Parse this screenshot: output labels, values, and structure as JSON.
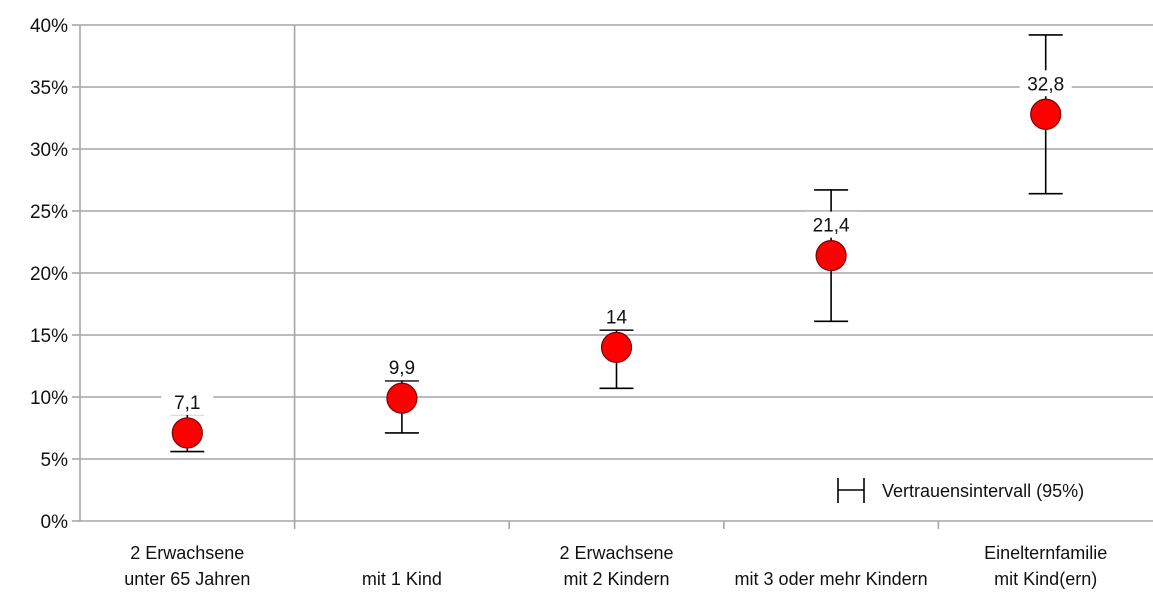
{
  "chart_data": {
    "type": "scatter",
    "ylim": [
      0,
      40
    ],
    "y_tick_labels": [
      "0%",
      "5%",
      "10%",
      "15%",
      "20%",
      "25%",
      "30%",
      "35%",
      "40%"
    ],
    "y_tick_values": [
      0,
      5,
      10,
      15,
      20,
      25,
      30,
      35,
      40
    ],
    "categories": [
      [
        "2 Erwachsene",
        "unter 65 Jahren"
      ],
      [
        "mit 1 Kind"
      ],
      [
        "2 Erwachsene",
        "mit 2 Kindern"
      ],
      [
        "mit 3 oder mehr Kindern"
      ],
      [
        "Einelternfamilie",
        "mit Kind(ern)"
      ]
    ],
    "points": [
      {
        "value": 7.1,
        "label": "7,1",
        "ci_low": 5.6,
        "ci_high": 8.6
      },
      {
        "value": 9.9,
        "label": "9,9",
        "ci_low": 7.1,
        "ci_high": 11.3
      },
      {
        "value": 14,
        "label": "14",
        "ci_low": 10.7,
        "ci_high": 15.4
      },
      {
        "value": 21.4,
        "label": "21,4",
        "ci_low": 16.1,
        "ci_high": 26.7
      },
      {
        "value": 32.8,
        "label": "32,8",
        "ci_low": 26.4,
        "ci_high": 39.2
      }
    ],
    "legend": "Vertrauensintervall (95%)",
    "grid": true,
    "colors": {
      "marker": "#ff0000",
      "marker_stroke": "#7a0000",
      "grid": "#a6a6a6",
      "errorbar": "#000000"
    }
  }
}
